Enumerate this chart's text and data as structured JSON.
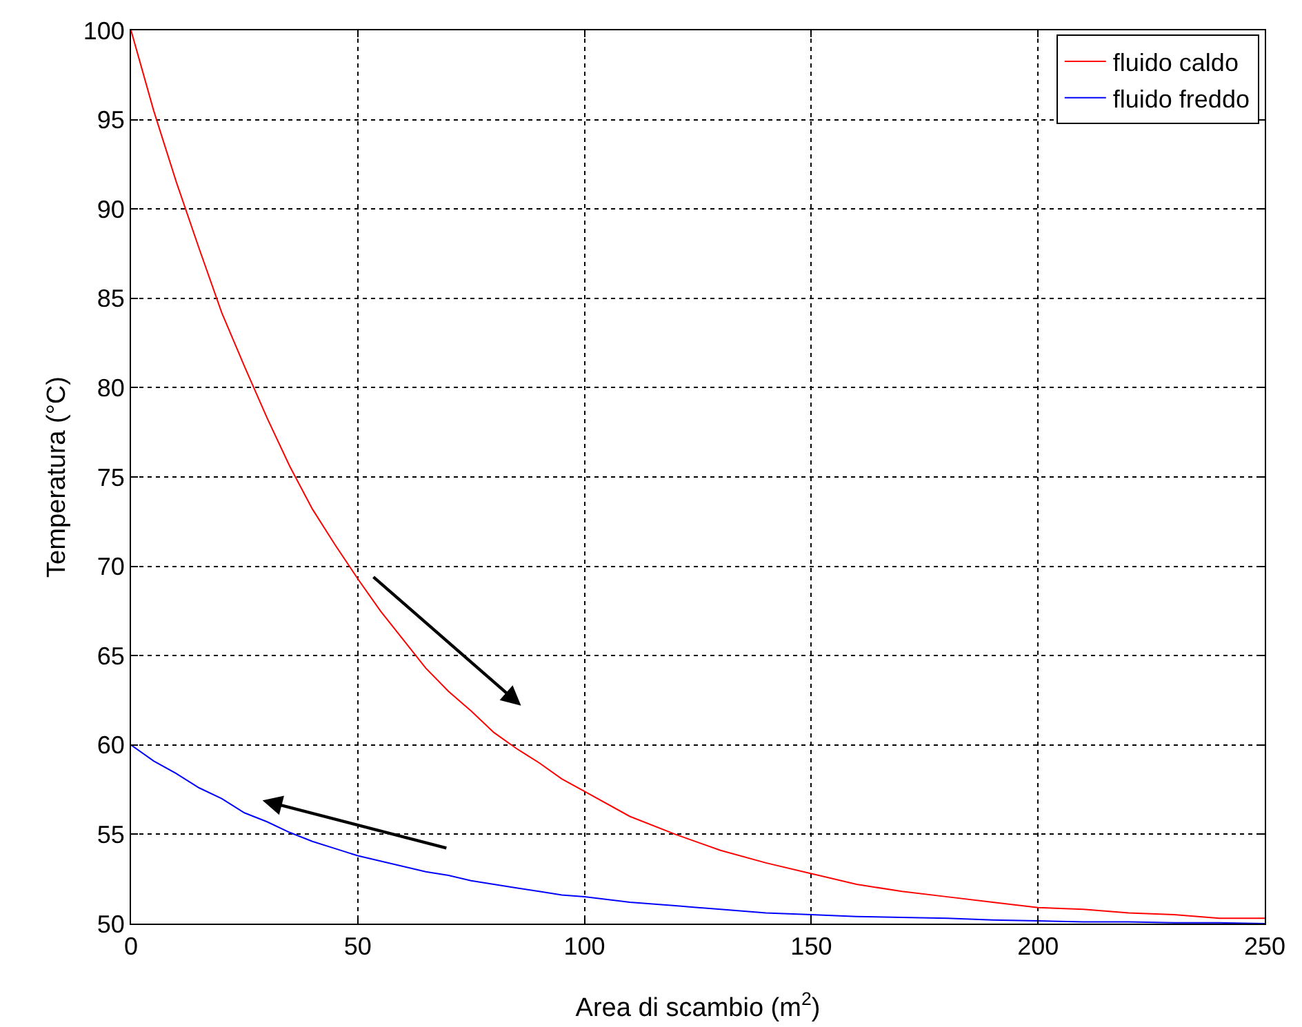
{
  "chart_data": {
    "type": "line",
    "xlabel": "Area di scambio (m$^{2}$)",
    "ylabel": "Temperatura (°C)",
    "xlim": [
      0,
      250
    ],
    "ylim": [
      50,
      100
    ],
    "xticks": [
      0,
      50,
      100,
      150,
      200,
      250
    ],
    "yticks": [
      50,
      55,
      60,
      65,
      70,
      75,
      80,
      85,
      90,
      95,
      100
    ],
    "grid": true,
    "legend": "top right",
    "line_style": "solid",
    "marker": "none",
    "x": [
      0,
      5,
      10,
      15,
      20,
      25,
      30,
      35,
      40,
      45,
      50,
      55,
      60,
      65,
      70,
      75,
      80,
      85,
      90,
      95,
      100,
      110,
      120,
      130,
      140,
      150,
      160,
      170,
      180,
      190,
      200,
      210,
      220,
      230,
      240,
      250
    ],
    "series": [
      {
        "name": "fluido caldo",
        "color": "#ff0000",
        "values": [
          100,
          95.5,
          91.5,
          87.8,
          84.2,
          81.2,
          78.3,
          75.6,
          73.2,
          71.2,
          69.3,
          67.5,
          65.9,
          64.3,
          63.0,
          61.9,
          60.7,
          59.8,
          59.0,
          58.1,
          57.4,
          56.0,
          55.0,
          54.1,
          53.4,
          52.8,
          52.2,
          51.8,
          51.5,
          51.2,
          50.9,
          50.8,
          50.6,
          50.5,
          50.3,
          50.3
        ]
      },
      {
        "name": "fluido freddo",
        "color": "#0000ff",
        "values": [
          60,
          59.1,
          58.4,
          57.6,
          57.0,
          56.2,
          55.7,
          55.1,
          54.6,
          54.2,
          53.8,
          53.5,
          53.2,
          52.9,
          52.7,
          52.4,
          52.2,
          52.0,
          51.8,
          51.6,
          51.5,
          51.2,
          51.0,
          50.8,
          50.6,
          50.5,
          50.4,
          50.35,
          50.3,
          50.2,
          50.15,
          50.1,
          50.1,
          50.05,
          50.05,
          50.0
        ]
      }
    ]
  }
}
